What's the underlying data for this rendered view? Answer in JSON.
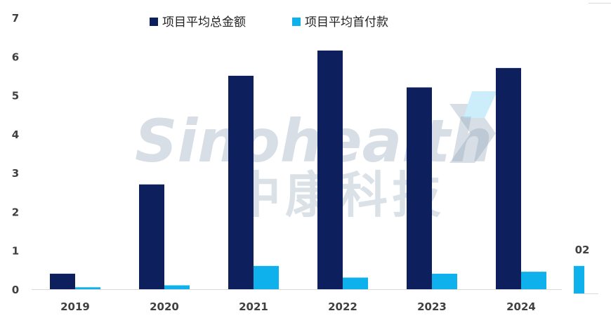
{
  "chart_data": {
    "type": "bar",
    "categories": [
      "2019",
      "2020",
      "2021",
      "2022",
      "2023",
      "2024"
    ],
    "series": [
      {
        "name": "项目平均总金额",
        "color": "#0d1f5c",
        "values": [
          0.4,
          2.7,
          5.5,
          6.15,
          5.2,
          5.7
        ]
      },
      {
        "name": "项目平均首付款",
        "color": "#0eb1ec",
        "values": [
          0.05,
          0.1,
          0.6,
          0.3,
          0.4,
          0.45
        ]
      }
    ],
    "y_ticks": [
      "0",
      "1",
      "2",
      "3",
      "4",
      "5",
      "6",
      "7"
    ],
    "ylim": [
      0,
      7
    ],
    "grid": false,
    "legend_position": "top",
    "title": "",
    "xlabel": "",
    "ylabel": "",
    "extra_bar": {
      "label": "02",
      "value": 0.6,
      "color": "#0eb1ec"
    }
  },
  "watermark": {
    "latin": "Sinohealth",
    "cjk": "中康科技"
  }
}
